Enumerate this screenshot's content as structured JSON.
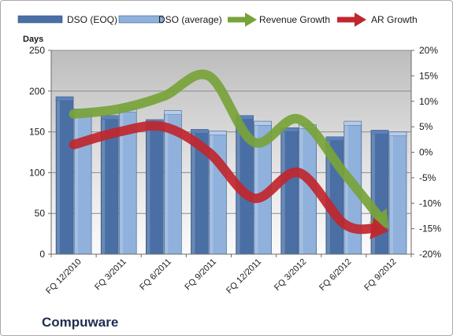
{
  "chart_data": {
    "type": "bar",
    "title": "",
    "company": "Compuware",
    "categories": [
      "FQ 12/2010",
      "FQ 3/2011",
      "FQ 6/2011",
      "FQ 9/2011",
      "FQ 12/2011",
      "FQ 3/2012",
      "FQ 6/2012",
      "FQ 9/2012"
    ],
    "ylabel": "Days",
    "ylim": [
      0,
      250
    ],
    "yticks": [
      0,
      50,
      100,
      150,
      200,
      250
    ],
    "y2lim": [
      -20,
      20
    ],
    "y2ticks": [
      "-20%",
      "-15%",
      "-10%",
      "-5%",
      "0%",
      "5%",
      "10%",
      "15%",
      "20%"
    ],
    "grid": true,
    "legend_position": "top",
    "series": [
      {
        "name": "DSO (EOQ)",
        "kind": "bar",
        "axis": "left",
        "color": "#4a6fa5",
        "values": [
          193,
          170,
          165,
          153,
          170,
          155,
          144,
          152
        ]
      },
      {
        "name": "DSO (average)",
        "kind": "bar",
        "axis": "left",
        "color": "#8fb1dc",
        "values": [
          178,
          179,
          176,
          151,
          163,
          159,
          163,
          150
        ]
      },
      {
        "name": "Revenue Growth",
        "kind": "arrow-line",
        "axis": "right",
        "color": "#77a33a",
        "values": [
          7.5,
          8.5,
          11,
          15,
          2,
          6.5,
          -4,
          -15
        ]
      },
      {
        "name": "AR Growth",
        "kind": "arrow-line",
        "axis": "right",
        "color": "#c0262d",
        "values": [
          1.5,
          4,
          5,
          0,
          -9,
          -4,
          -14,
          -15.5
        ]
      }
    ]
  }
}
